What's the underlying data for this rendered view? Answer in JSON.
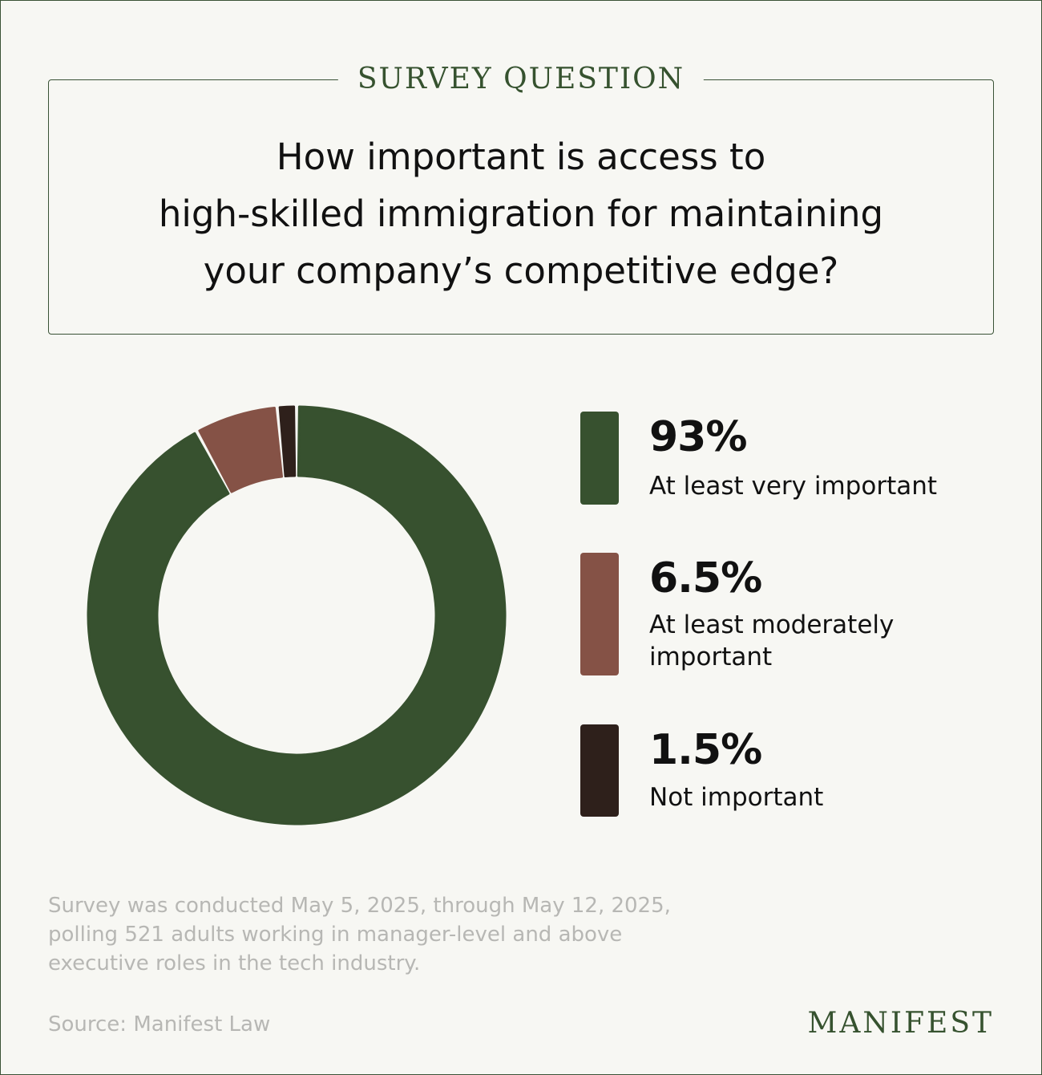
{
  "header": {
    "kicker": "SURVEY QUESTION",
    "question_lines": [
      "How important is access to",
      "high-skilled immigration for maintaining",
      "your company’s competitive edge?"
    ]
  },
  "chart_data": {
    "type": "pie",
    "title": "How important is access to high-skilled immigration for maintaining your company’s competitive edge?",
    "categories": [
      "At least very important",
      "At least moderately important",
      "Not important"
    ],
    "values": [
      93,
      6.5,
      1.5
    ],
    "value_labels": [
      "93%",
      "6.5%",
      "1.5%"
    ],
    "colors": [
      "#37512f",
      "#855246",
      "#2e201b"
    ],
    "legend_position": "right"
  },
  "footer": {
    "note_lines": [
      "Survey was conducted May 5, 2025, through May 12, 2025,",
      "polling 521 adults working in manager-level and above",
      "executive roles in the tech industry."
    ],
    "source": "Source: Manifest Law",
    "brand": "MANIFEST"
  },
  "colors": {
    "accent": "#36522f",
    "background": "#f7f7f3",
    "muted_text": "#b7b7b4"
  }
}
